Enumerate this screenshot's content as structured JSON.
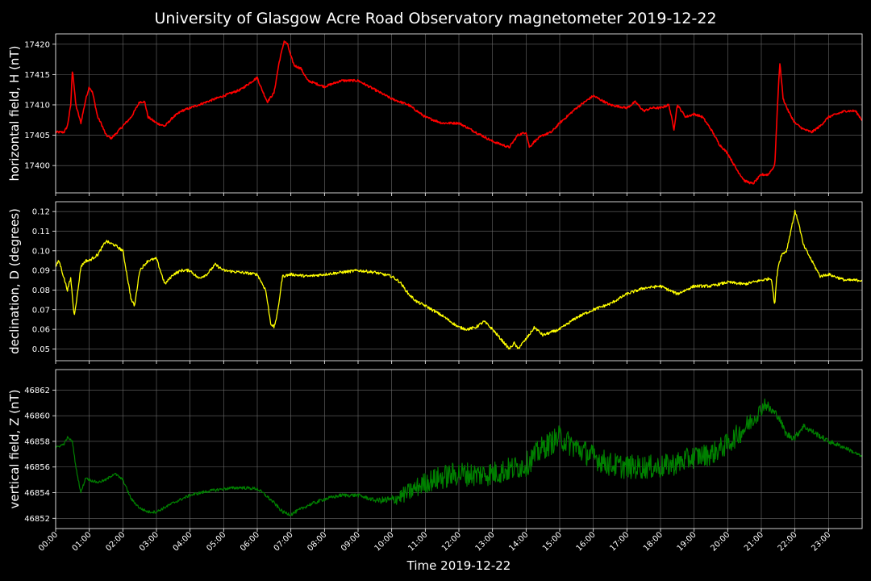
{
  "title": "University of Glasgow Acre Road Observatory magnetometer 2019-12-22",
  "xlabel": "Time 2019-12-22",
  "chart_data": {
    "type": "line",
    "x_ticks": [
      "00:00",
      "01:00",
      "02:00",
      "03:00",
      "04:00",
      "05:00",
      "06:00",
      "07:00",
      "08:00",
      "09:00",
      "10:00",
      "11:00",
      "12:00",
      "13:00",
      "14:00",
      "15:00",
      "16:00",
      "17:00",
      "18:00",
      "19:00",
      "20:00",
      "21:00",
      "22:00",
      "23:00"
    ],
    "xlim_hours": [
      0,
      24
    ],
    "grid": true,
    "panels": [
      {
        "ylabel": "horizontal field, H (nT)",
        "color": "#ff0000",
        "ylim": [
          17395.5,
          17421.7
        ],
        "yticks": [
          "17400",
          "17405",
          "17410",
          "17415",
          "17420"
        ],
        "ytick_values": [
          17400,
          17405,
          17410,
          17415,
          17420
        ],
        "noise": 0.3,
        "stroke_width": 1.6,
        "x": [
          0,
          0.25,
          0.35,
          0.45,
          0.5,
          0.6,
          0.75,
          0.9,
          1.0,
          1.1,
          1.25,
          1.35,
          1.5,
          1.65,
          1.75,
          2.0,
          2.25,
          2.5,
          2.65,
          2.75,
          3.0,
          3.25,
          3.5,
          3.75,
          4.0,
          4.5,
          5.0,
          5.5,
          6.0,
          6.1,
          6.3,
          6.5,
          6.65,
          6.8,
          6.9,
          7.0,
          7.1,
          7.3,
          7.5,
          8.0,
          8.5,
          9.0,
          9.5,
          10.0,
          10.5,
          11.0,
          11.5,
          12.0,
          12.5,
          13.0,
          13.25,
          13.5,
          13.75,
          14.0,
          14.1,
          14.25,
          14.5,
          14.75,
          15.0,
          15.5,
          16.0,
          16.5,
          17.0,
          17.25,
          17.5,
          17.75,
          18.0,
          18.25,
          18.4,
          18.5,
          18.75,
          19.0,
          19.25,
          19.5,
          19.75,
          20.0,
          20.25,
          20.5,
          20.75,
          21.0,
          21.2,
          21.4,
          21.5,
          21.55,
          21.65,
          21.8,
          22.0,
          22.25,
          22.5,
          22.75,
          23.0,
          23.5,
          23.8,
          24.0
        ],
        "y": [
          17405.5,
          17405.5,
          17406.5,
          17410,
          17416,
          17410,
          17407,
          17411,
          17413,
          17412,
          17408,
          17407,
          17405,
          17404.5,
          17405,
          17406.5,
          17408,
          17410.5,
          17410.5,
          17408,
          17407,
          17406.5,
          17408,
          17409,
          17409.5,
          17410.5,
          17411.5,
          17412.5,
          17414.5,
          17413,
          17410.5,
          17412,
          17417,
          17420.5,
          17420,
          17418,
          17416.5,
          17416,
          17414,
          17413,
          17414,
          17414,
          17412.5,
          17411,
          17410,
          17408,
          17407,
          17407,
          17405.5,
          17404,
          17403.5,
          17403,
          17405,
          17405.5,
          17403,
          17404,
          17405,
          17405.5,
          17407,
          17409.5,
          17411.5,
          17410,
          17409.5,
          17410.5,
          17409,
          17409.5,
          17409.5,
          17410,
          17406,
          17410,
          17408,
          17408.5,
          17408,
          17406,
          17403.5,
          17402,
          17399.5,
          17397.5,
          17397,
          17398.5,
          17398.5,
          17400,
          17412,
          17417,
          17411,
          17409,
          17407,
          17406,
          17405.5,
          17406.5,
          17408,
          17409,
          17409,
          17407.5
        ]
      },
      {
        "ylabel": "declination, D (degrees)",
        "color": "#ffff00",
        "ylim": [
          0.044,
          0.125
        ],
        "yticks": [
          "0.05",
          "0.06",
          "0.07",
          "0.08",
          "0.09",
          "0.10",
          "0.11",
          "0.12"
        ],
        "ytick_values": [
          0.05,
          0.06,
          0.07,
          0.08,
          0.09,
          0.1,
          0.11,
          0.12
        ],
        "noise": 0.0012,
        "stroke_width": 1.3,
        "x": [
          0,
          0.1,
          0.25,
          0.35,
          0.45,
          0.55,
          0.65,
          0.75,
          0.9,
          1.0,
          1.25,
          1.5,
          1.6,
          1.75,
          2.0,
          2.1,
          2.25,
          2.35,
          2.5,
          2.75,
          3.0,
          3.25,
          3.5,
          3.75,
          4.0,
          4.25,
          4.5,
          4.75,
          5.0,
          5.5,
          6.0,
          6.25,
          6.4,
          6.5,
          6.6,
          6.75,
          7.0,
          7.5,
          8.0,
          8.5,
          9.0,
          9.5,
          10.0,
          10.25,
          10.5,
          10.75,
          11.0,
          11.5,
          12.0,
          12.25,
          12.5,
          12.75,
          13.0,
          13.25,
          13.5,
          13.65,
          13.75,
          14.0,
          14.25,
          14.5,
          15.0,
          15.5,
          16.0,
          16.5,
          17.0,
          17.5,
          18.0,
          18.5,
          19.0,
          19.5,
          20.0,
          20.5,
          21.0,
          21.3,
          21.4,
          21.45,
          21.5,
          21.6,
          21.75,
          21.9,
          22.0,
          22.1,
          22.25,
          22.5,
          22.75,
          23.0,
          23.5,
          24.0
        ],
        "y": [
          0.092,
          0.095,
          0.086,
          0.08,
          0.086,
          0.067,
          0.078,
          0.092,
          0.095,
          0.095,
          0.098,
          0.105,
          0.104,
          0.103,
          0.1,
          0.09,
          0.075,
          0.072,
          0.09,
          0.095,
          0.096,
          0.083,
          0.088,
          0.09,
          0.09,
          0.086,
          0.088,
          0.093,
          0.09,
          0.089,
          0.088,
          0.08,
          0.063,
          0.061,
          0.068,
          0.087,
          0.088,
          0.087,
          0.088,
          0.089,
          0.09,
          0.089,
          0.087,
          0.084,
          0.078,
          0.074,
          0.072,
          0.067,
          0.061,
          0.06,
          0.061,
          0.064,
          0.06,
          0.055,
          0.05,
          0.053,
          0.05,
          0.055,
          0.061,
          0.057,
          0.06,
          0.066,
          0.07,
          0.073,
          0.078,
          0.081,
          0.082,
          0.078,
          0.082,
          0.082,
          0.084,
          0.083,
          0.085,
          0.086,
          0.072,
          0.085,
          0.092,
          0.098,
          0.1,
          0.112,
          0.12,
          0.115,
          0.103,
          0.095,
          0.087,
          0.088,
          0.085,
          0.085
        ]
      },
      {
        "ylabel": "vertical field, Z (nT)",
        "color": "#008000",
        "ylim": [
          46851.2,
          46863.6
        ],
        "yticks": [
          "46852",
          "46854",
          "46856",
          "46858",
          "46860",
          "46862"
        ],
        "ytick_values": [
          46852,
          46854,
          46856,
          46858,
          46860,
          46862
        ],
        "noise_env": {
          "x": [
            0,
            9.5,
            10.5,
            11.5,
            15.0,
            17.0,
            20.5,
            21.5,
            24.0
          ],
          "amp": [
            0.15,
            0.25,
            1.2,
            1.6,
            1.6,
            1.6,
            1.4,
            0.5,
            0.2
          ]
        },
        "stroke_width": 1.2,
        "x": [
          0,
          0.25,
          0.35,
          0.5,
          0.6,
          0.75,
          0.9,
          1.0,
          1.25,
          1.5,
          1.75,
          2.0,
          2.25,
          2.5,
          2.75,
          3.0,
          3.5,
          4.0,
          4.5,
          5.0,
          5.5,
          6.0,
          6.25,
          6.5,
          6.75,
          7.0,
          7.5,
          8.0,
          8.5,
          9.0,
          9.5,
          10.0,
          10.5,
          11.0,
          11.5,
          12.0,
          12.5,
          13.0,
          13.5,
          14.0,
          14.5,
          15.0,
          15.5,
          16.0,
          16.5,
          17.0,
          17.5,
          18.0,
          18.5,
          19.0,
          19.5,
          20.0,
          20.5,
          21.0,
          21.1,
          21.25,
          21.5,
          21.75,
          22.0,
          22.25,
          22.5,
          23.0,
          23.5,
          24.0
        ],
        "y": [
          46857.5,
          46857.8,
          46858.3,
          46858,
          46856,
          46854,
          46855.2,
          46855,
          46854.8,
          46855,
          46855.5,
          46855,
          46853.5,
          46852.8,
          46852.5,
          46852.5,
          46853.2,
          46853.8,
          46854.1,
          46854.3,
          46854.4,
          46854.3,
          46853.8,
          46853.2,
          46852.5,
          46852.3,
          46853,
          46853.5,
          46853.8,
          46853.8,
          46853.4,
          46853.4,
          46854,
          46854.8,
          46855.2,
          46855.5,
          46855.4,
          46855.5,
          46855.8,
          46856.2,
          46857.5,
          46858.3,
          46857.5,
          46856.8,
          46856.2,
          46856,
          46856,
          46856,
          46856.3,
          46856.8,
          46857,
          46857.8,
          46859,
          46860.5,
          46861,
          46860.5,
          46860,
          46858.5,
          46858.3,
          46859.2,
          46858.8,
          46858,
          46857.5,
          46856.8
        ]
      }
    ]
  }
}
